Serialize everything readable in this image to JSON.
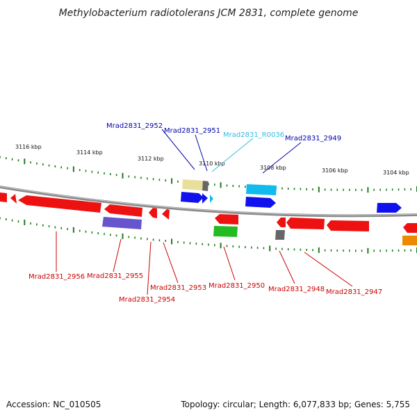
{
  "title": "Methylobacterium radiotolerans JCM 2831, complete genome",
  "footer": {
    "accession": "Accession: NC_010505",
    "summary": "Topology: circular; Length: 6,077,833 bp; Genes: 5,755"
  },
  "colors": {
    "backbone": "#8a8a8a",
    "tick": "#1f7a1f",
    "label_red": "#cc0000",
    "label_blue": "#0000aa",
    "label_cyan": "#33bbdd",
    "gene_red": "#ee1111",
    "gene_blue": "#1111ee",
    "gene_cyan": "#11bbee",
    "gene_purple": "#6655cc",
    "gene_green": "#22bb22",
    "gene_orange": "#ee8800",
    "gene_khaki": "#e8e09a",
    "gene_gray": "#666666"
  },
  "scale_labels": [
    "3116 kbp",
    "3114 kbp",
    "3112 kbp",
    "3110 kbp",
    "3108 kbp",
    "3106 kbp",
    "3104 kbp"
  ],
  "gene_labels": {
    "Mrad2831_2952": "Mrad2831_2952",
    "Mrad2831_2951": "Mrad2831_2951",
    "Mrad2831_R0036": "Mrad2831_R0036",
    "Mrad2831_2949": "Mrad2831_2949",
    "Mrad2831_2956": "Mrad2831_2956",
    "Mrad2831_2955": "Mrad2831_2955",
    "Mrad2831_2954": "Mrad2831_2954",
    "Mrad2831_2953": "Mrad2831_2953",
    "Mrad2831_2950": "Mrad2831_2950",
    "Mrad2831_2948": "Mrad2831_2948",
    "Mrad2831_2947": "Mrad2831_2947"
  }
}
